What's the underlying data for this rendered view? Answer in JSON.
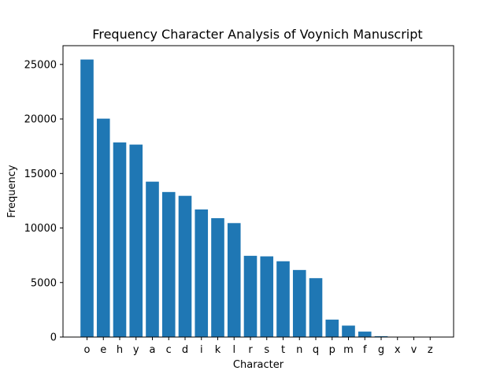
{
  "chart_data": {
    "type": "bar",
    "title": "Frequency Character Analysis of Voynich Manuscript",
    "xlabel": "Character",
    "ylabel": "Frequency",
    "categories": [
      "o",
      "e",
      "h",
      "y",
      "a",
      "c",
      "d",
      "i",
      "k",
      "l",
      "r",
      "s",
      "t",
      "n",
      "q",
      "p",
      "m",
      "f",
      "g",
      "x",
      "v",
      "z"
    ],
    "values": [
      25450,
      20030,
      17850,
      17650,
      14250,
      13300,
      12950,
      11700,
      10900,
      10450,
      7450,
      7400,
      6950,
      6150,
      5400,
      1600,
      1050,
      500,
      80,
      10,
      5,
      5
    ],
    "ylim": [
      0,
      26720
    ],
    "yticks": [
      0,
      5000,
      10000,
      15000,
      20000,
      25000
    ],
    "bar_color": "#1f77b4",
    "grid": false
  }
}
